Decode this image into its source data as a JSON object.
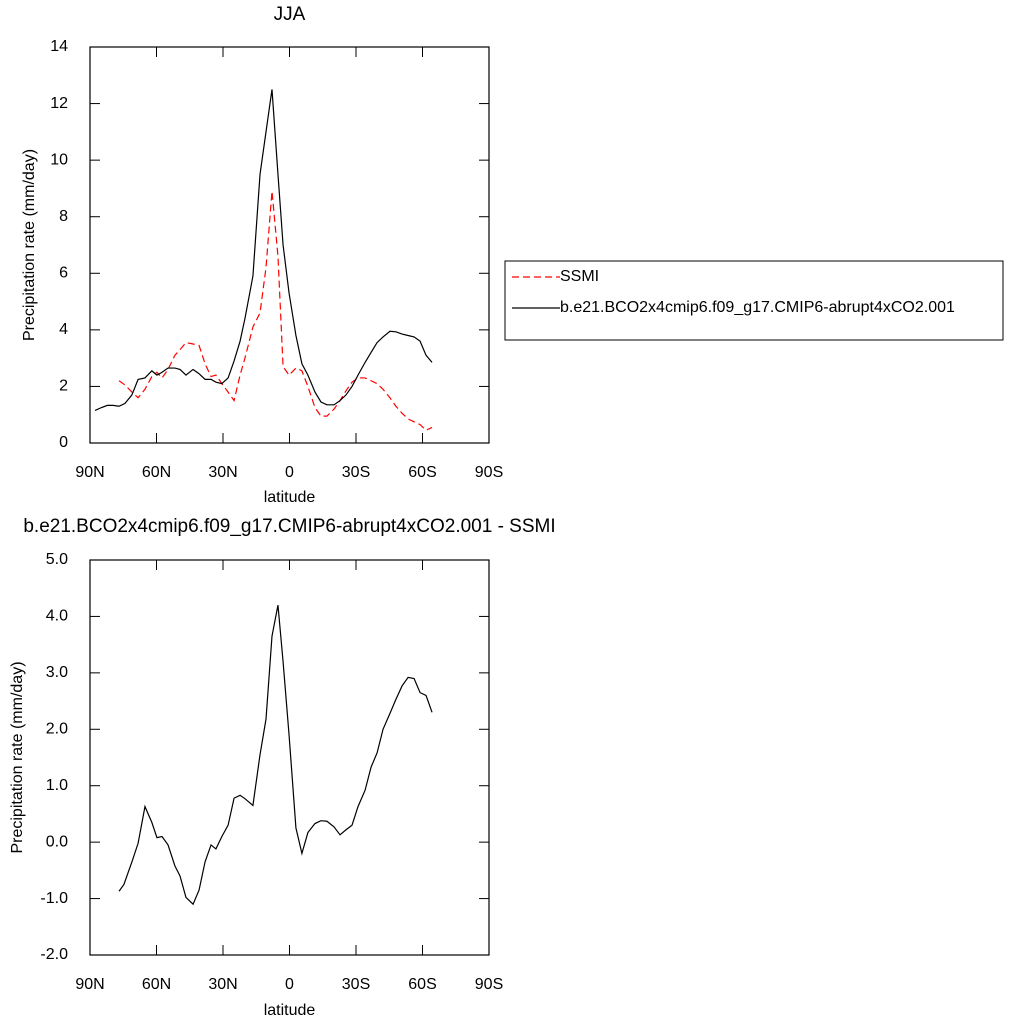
{
  "chart_data": [
    {
      "type": "line",
      "title": "JJA",
      "xlabel": "latitude",
      "ylabel": "Precipitation rate (mm/day)",
      "x": [
        87.7,
        84.9,
        82.2,
        79.6,
        76.9,
        74.2,
        71.1,
        68.3,
        65.2,
        62.1,
        59.8,
        57.5,
        54.8,
        51.7,
        49.4,
        46.7,
        43.5,
        40.8,
        38.1,
        35.4,
        33.2,
        30.5,
        27.7,
        25.0,
        22.3,
        20.1,
        16.5,
        13.3,
        10.6,
        7.9,
        5.2,
        2.9,
        0.2,
        -2.9,
        -5.6,
        -8.3,
        -11.5,
        -14.2,
        -16.9,
        -20.1,
        -22.8,
        -25.5,
        -28.2,
        -30.9,
        -34.1,
        -36.8,
        -39.5,
        -42.2,
        -45.3,
        -48.0,
        -50.8,
        -53.5,
        -56.2,
        -58.9,
        -61.6,
        -64.3
      ],
      "series": [
        {
          "name": "SSMI",
          "color": "#ff0000",
          "dashed": true,
          "values": [
            null,
            null,
            null,
            null,
            2.2,
            2.05,
            1.8,
            1.6,
            1.9,
            2.35,
            2.5,
            2.3,
            2.6,
            3.1,
            3.3,
            3.55,
            3.5,
            3.45,
            2.8,
            2.35,
            2.4,
            2.1,
            1.8,
            1.5,
            2.4,
            3.0,
            4.1,
            4.6,
            6.2,
            8.9,
            6.6,
            2.7,
            2.4,
            2.65,
            2.55,
            2.0,
            1.25,
            0.95,
            0.95,
            1.2,
            1.5,
            1.85,
            2.15,
            2.3,
            2.3,
            2.2,
            2.1,
            1.9,
            1.6,
            1.3,
            1.05,
            0.85,
            0.75,
            0.65,
            0.45,
            0.55
          ]
        },
        {
          "name": "b.e21.BCO2x4cmip6.f09_g17.CMIP6-abrupt4xCO2.001",
          "color": "#000000",
          "dashed": false,
          "values": [
            1.15,
            1.25,
            1.33,
            1.33,
            1.3,
            1.4,
            1.7,
            2.25,
            2.3,
            2.55,
            2.4,
            2.5,
            2.65,
            2.65,
            2.6,
            2.4,
            2.6,
            2.45,
            2.25,
            2.25,
            2.15,
            2.1,
            2.3,
            2.9,
            3.6,
            4.4,
            5.9,
            9.5,
            11.0,
            12.5,
            9.5,
            7.0,
            5.3,
            3.8,
            2.8,
            2.4,
            1.8,
            1.45,
            1.35,
            1.35,
            1.5,
            1.7,
            2.0,
            2.4,
            2.85,
            3.2,
            3.55,
            3.75,
            3.95,
            3.93,
            3.85,
            3.8,
            3.75,
            3.6,
            3.1,
            2.85
          ]
        }
      ],
      "xlim": [
        90,
        -90
      ],
      "xticks": [
        {
          "value": 90,
          "label": "90N"
        },
        {
          "value": 60,
          "label": "60N"
        },
        {
          "value": 30,
          "label": "30N"
        },
        0,
        {
          "value": -30,
          "label": "30S"
        },
        {
          "value": -60,
          "label": "60S"
        },
        {
          "value": -90,
          "label": "90S"
        }
      ],
      "ylim": [
        0,
        14
      ],
      "yticks": [
        0,
        2,
        4,
        6,
        8,
        10,
        12,
        14
      ],
      "legend": "right"
    },
    {
      "type": "line",
      "title": "b.e21.BCO2x4cmip6.f09_g17.CMIP6-abrupt4xCO2.001 - SSMI",
      "xlabel": "latitude",
      "ylabel": "Precipitation rate (mm/day)",
      "x": [
        76.9,
        74.7,
        71.1,
        68.3,
        65.2,
        62.1,
        59.8,
        57.5,
        54.8,
        51.7,
        49.4,
        46.7,
        43.5,
        40.8,
        38.1,
        35.4,
        33.2,
        30.5,
        27.7,
        25.0,
        22.3,
        20.1,
        16.5,
        13.3,
        10.6,
        7.9,
        5.2,
        2.9,
        0.2,
        -2.9,
        -5.6,
        -8.3,
        -11.5,
        -14.2,
        -16.9,
        -20.1,
        -22.8,
        -25.5,
        -28.2,
        -30.9,
        -34.1,
        -36.8,
        -39.5,
        -42.2,
        -45.3,
        -48.0,
        -50.8,
        -53.5,
        -56.2,
        -58.9,
        -61.6,
        -64.3
      ],
      "series": [
        {
          "name": null,
          "color": "#000000",
          "dashed": false,
          "values": [
            -0.87,
            -0.75,
            -0.35,
            -0.02,
            0.63,
            0.35,
            0.08,
            0.1,
            -0.05,
            -0.42,
            -0.6,
            -0.98,
            -1.1,
            -0.85,
            -0.35,
            -0.05,
            -0.12,
            0.1,
            0.3,
            0.78,
            0.83,
            0.77,
            0.65,
            1.55,
            2.18,
            3.65,
            4.2,
            3.2,
            1.9,
            0.25,
            -0.2,
            0.17,
            0.33,
            0.38,
            0.37,
            0.27,
            0.13,
            0.22,
            0.3,
            0.63,
            0.92,
            1.33,
            1.58,
            2.0,
            2.28,
            2.53,
            2.77,
            2.92,
            2.9,
            2.65,
            2.6,
            2.3
          ]
        }
      ],
      "xlim": [
        90,
        -90
      ],
      "xticks": [
        {
          "value": 90,
          "label": "90N"
        },
        {
          "value": 60,
          "label": "60N"
        },
        {
          "value": 30,
          "label": "30N"
        },
        0,
        {
          "value": -30,
          "label": "30S"
        },
        {
          "value": -60,
          "label": "60S"
        },
        {
          "value": -90,
          "label": "90S"
        }
      ],
      "ylim": [
        -2,
        5
      ],
      "yticks": [
        {
          "value": -2,
          "label": "-2.0"
        },
        {
          "value": -1,
          "label": "-1.0"
        },
        {
          "value": 0,
          "label": "0.0"
        },
        {
          "value": 1,
          "label": "1.0"
        },
        {
          "value": 2,
          "label": "2.0"
        },
        {
          "value": 3,
          "label": "3.0"
        },
        {
          "value": 4,
          "label": "4.0"
        },
        {
          "value": 5,
          "label": "5.0"
        }
      ]
    }
  ]
}
